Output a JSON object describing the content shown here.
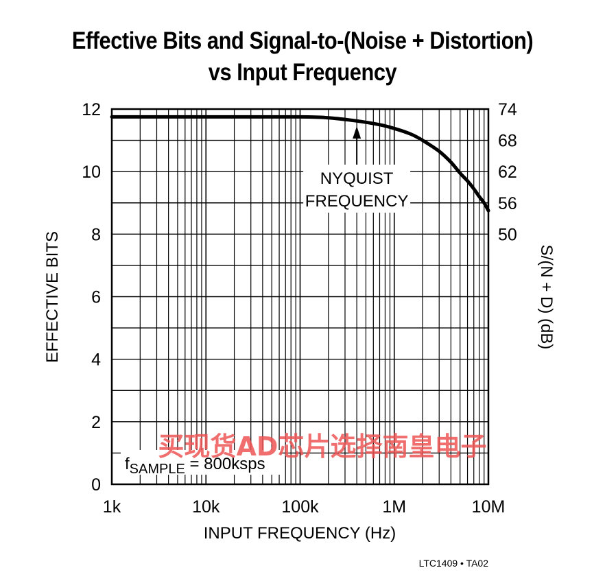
{
  "chart_data": {
    "type": "line",
    "title_line1": "Effective Bits and Signal-to-(Noise + Distortion)",
    "title_line2": "vs Input Frequency",
    "xlabel": "INPUT FREQUENCY (Hz)",
    "ylabel": "EFFECTIVE BITS",
    "y2label": "S/(N + D) (dB)",
    "xscale": "log",
    "xlim": [
      1000,
      10000000
    ],
    "ylim": [
      0,
      12
    ],
    "x_ticks": [
      1000,
      10000,
      100000,
      1000000,
      10000000
    ],
    "x_tick_labels": [
      "1k",
      "10k",
      "100k",
      "1M",
      "10M"
    ],
    "y_ticks": [
      0,
      2,
      4,
      6,
      8,
      10,
      12
    ],
    "y_tick_labels": [
      "0",
      "2",
      "4",
      "6",
      "8",
      "10",
      "12"
    ],
    "y2_ticks": [
      8,
      9,
      10,
      11,
      12
    ],
    "y2_tick_labels": [
      "50",
      "56",
      "62",
      "68",
      "74"
    ],
    "grid": true,
    "series": [
      {
        "x": [
          1000,
          10000,
          100000,
          200000,
          400000,
          700000,
          1000000,
          1500000,
          2000000,
          3000000,
          4000000,
          5000000,
          6000000,
          7000000,
          8000000,
          9000000,
          10000000
        ],
        "y": [
          11.75,
          11.75,
          11.75,
          11.72,
          11.62,
          11.5,
          11.38,
          11.2,
          11.0,
          10.65,
          10.3,
          9.95,
          9.7,
          9.45,
          9.2,
          9.0,
          8.75
        ]
      }
    ],
    "annotations": {
      "nyquist_line1": "NYQUIST",
      "nyquist_line2": "FREQUENCY",
      "nyquist_x": 400000,
      "fsample_prefix": "f",
      "fsample_sub": "SAMPLE",
      "fsample_rest": " = 800ksps"
    },
    "figure_ref": "LTC1409 • TA02",
    "watermark": "买现货AD芯片选择南皇电子"
  }
}
